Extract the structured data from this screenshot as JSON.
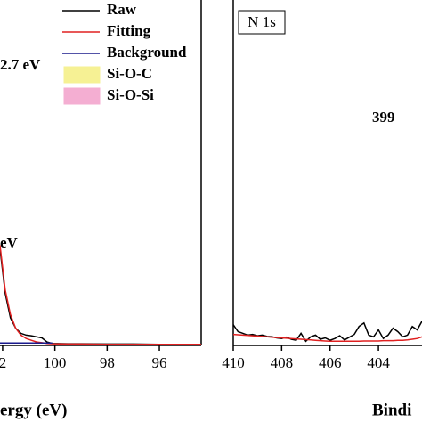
{
  "chart_data": [
    {
      "type": "line",
      "xlabel": "ergy (eV)",
      "annotations": [
        {
          "text": "2.7 eV"
        },
        {
          "text": "eV"
        }
      ],
      "xlim": [
        102.1,
        94.4
      ],
      "ylim": [
        0,
        100
      ],
      "xticks": [
        {
          "value": 102,
          "label": "2"
        },
        100,
        98,
        96
      ],
      "x": [
        102.1,
        101.9,
        101.7,
        101.5,
        101.3,
        101.1,
        100.9,
        100.7,
        100.5,
        100.3,
        100.1,
        99.5,
        99,
        98,
        97,
        96,
        95,
        94.4
      ],
      "series": [
        {
          "name": "Raw",
          "color": "#000000",
          "values": [
            28,
            15,
            8,
            5,
            3.5,
            3,
            2.8,
            2.5,
            2.2,
            1,
            0.6,
            0.5,
            0.5,
            0.4,
            0.4,
            0.3,
            0.3,
            0.3
          ]
        },
        {
          "name": "Fitting",
          "color": "#e02020",
          "values": [
            29,
            16,
            9,
            5,
            3,
            2,
            1.5,
            1,
            0.8,
            0.6,
            0.5,
            0.4,
            0.4,
            0.3,
            0.3,
            0.3,
            0.3,
            0.3
          ]
        },
        {
          "name": "Background",
          "color": "#1a1a8c",
          "values": [
            0.7,
            0.7,
            0.7,
            0.7,
            0.7,
            0.7,
            0.7,
            0.7,
            0.7,
            0.7,
            0.7,
            null,
            null,
            null,
            null,
            null,
            null,
            null
          ]
        }
      ],
      "legend_patches": [
        {
          "name": "Si-O-C",
          "color": "#f5ee7a"
        },
        {
          "name": "Si-O-Si",
          "color": "#f29ac8"
        }
      ]
    },
    {
      "type": "line",
      "xlabel": "Bindi",
      "label": "N 1s",
      "annotations": [
        {
          "text": "399"
        }
      ],
      "xlim": [
        410,
        402.2
      ],
      "ylim": [
        0,
        100
      ],
      "xticks": [
        410,
        408,
        406,
        404
      ],
      "x": [
        410,
        409.8,
        409.6,
        409.4,
        409.2,
        409,
        408.8,
        408.6,
        408.4,
        408.2,
        408,
        407.8,
        407.6,
        407.4,
        407.2,
        407,
        406.8,
        406.6,
        406.4,
        406.2,
        406,
        405.8,
        405.6,
        405.4,
        405.2,
        405,
        404.8,
        404.6,
        404.4,
        404.2,
        404,
        403.8,
        403.6,
        403.4,
        403.2,
        403,
        402.8,
        402.6,
        402.4,
        402.2
      ],
      "series": [
        {
          "color": "#000000",
          "values": [
            6,
            4,
            3.5,
            3,
            3.2,
            2.8,
            3,
            2.6,
            2.5,
            2.2,
            2,
            2.4,
            1.8,
            1.5,
            3.5,
            1.2,
            2.5,
            3,
            1.8,
            2.2,
            1.5,
            2,
            2.8,
            1.6,
            2.4,
            3.2,
            5.5,
            6.5,
            3,
            2.5,
            4.5,
            2,
            3,
            5,
            4,
            2.5,
            3,
            5.5,
            4.5,
            7
          ]
        },
        {
          "color": "#e02020",
          "values": [
            3.2,
            3.1,
            3.0,
            2.9,
            2.8,
            2.7,
            2.6,
            2.5,
            2.4,
            2.3,
            2.2,
            2.1,
            2.0,
            1.9,
            1.8,
            1.7,
            1.6,
            1.5,
            1.4,
            1.3,
            1.2,
            1.2,
            1.2,
            1.2,
            1.2,
            1.2,
            1.2,
            1.3,
            1.3,
            1.3,
            1.3,
            1.4,
            1.4,
            1.4,
            1.5,
            1.5,
            1.6,
            1.8,
            2.0,
            2.5
          ]
        }
      ]
    }
  ]
}
